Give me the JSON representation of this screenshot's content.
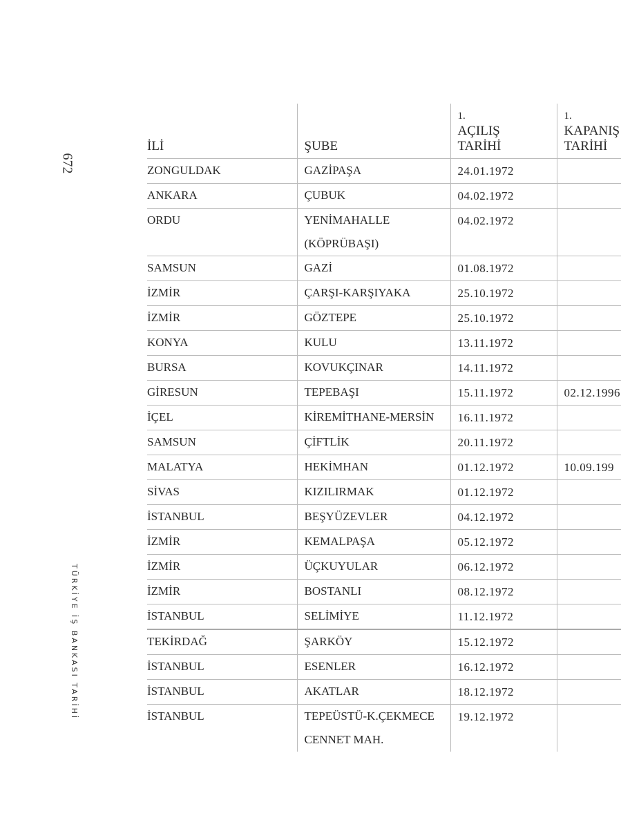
{
  "page_number": "672",
  "running_title": "TÜRKİYE İŞ BANKASI TARİHİ",
  "headers": [
    "İLİ",
    "ŞUBE",
    [
      "1.",
      "AÇILIŞ",
      "TARİHİ"
    ],
    [
      "1.",
      "KAPANIŞ",
      "TARİHİ"
    ]
  ],
  "rows": [
    [
      "ZONGULDAK",
      "GAZİPAŞA",
      "24.01.1972",
      ""
    ],
    [
      "ANKARA",
      "ÇUBUK",
      "04.02.1972",
      ""
    ],
    [
      "ORDU",
      "YENİMAHALLE (KÖPRÜBAŞI)",
      "04.02.1972",
      ""
    ],
    [
      "SAMSUN",
      "GAZİ",
      "01.08.1972",
      ""
    ],
    [
      "İZMİR",
      "ÇARŞI-KARŞIYAKA",
      "25.10.1972",
      ""
    ],
    [
      "İZMİR",
      "GÖZTEPE",
      "25.10.1972",
      ""
    ],
    [
      "KONYA",
      "KULU",
      "13.11.1972",
      ""
    ],
    [
      "BURSA",
      "KOVUKÇINAR",
      "14.11.1972",
      ""
    ],
    [
      "GİRESUN",
      "TEPEBAŞI",
      "15.11.1972",
      "02.12.1996"
    ],
    [
      "İÇEL",
      "KİREMİTHANE-MERSİN",
      "16.11.1972",
      ""
    ],
    [
      "SAMSUN",
      "ÇİFTLİK",
      "20.11.1972",
      ""
    ],
    [
      "MALATYA",
      "HEKİMHAN",
      "01.12.1972",
      "10.09.199"
    ],
    [
      "SİVAS",
      "KIZILIRMAK",
      "01.12.1972",
      ""
    ],
    [
      "İSTANBUL",
      "BEŞYÜZEVLER",
      "04.12.1972",
      ""
    ],
    [
      "İZMİR",
      "KEMALPAŞA",
      "05.12.1972",
      ""
    ],
    [
      "İZMİR",
      "ÜÇKUYULAR",
      "06.12.1972",
      ""
    ],
    [
      "İZMİR",
      "BOSTANLI",
      "08.12.1972",
      ""
    ],
    [
      "İSTANBUL",
      "SELİMİYE",
      "11.12.1972",
      ""
    ],
    [
      "TEKİRDAĞ",
      "ŞARKÖY",
      "15.12.1972",
      ""
    ],
    [
      "İSTANBUL",
      "ESENLER",
      "16.12.1972",
      ""
    ],
    [
      "İSTANBUL",
      "AKATLAR",
      "18.12.1972",
      ""
    ],
    [
      "İSTANBUL",
      "TEPEÜSTÜ-K.ÇEKMECE CENNET MAH.",
      "19.12.1972",
      ""
    ]
  ]
}
